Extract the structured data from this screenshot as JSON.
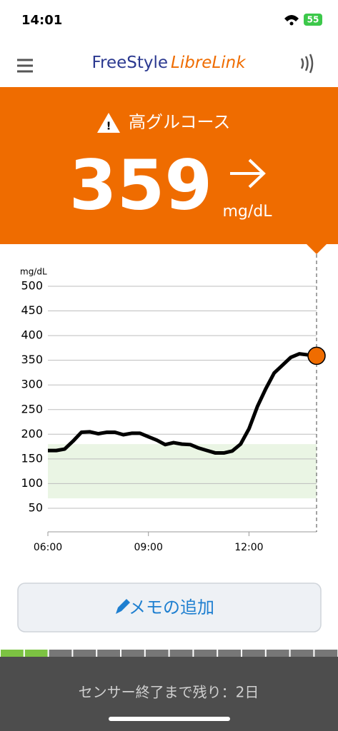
{
  "status_bar": {
    "time": "14:01",
    "battery": "55"
  },
  "header": {
    "brand_1": "FreeStyle",
    "brand_2": "LibreLink"
  },
  "alert": {
    "title": "高グルコース",
    "value": 359,
    "unit": "mg/dL"
  },
  "chart_data": {
    "type": "line",
    "y_label": "mg/dL",
    "x": [
      "06:00",
      "06:15",
      "06:30",
      "06:45",
      "07:00",
      "07:15",
      "07:30",
      "07:45",
      "08:00",
      "08:15",
      "08:30",
      "08:45",
      "09:00",
      "09:15",
      "09:30",
      "09:45",
      "10:00",
      "10:15",
      "10:30",
      "10:45",
      "11:00",
      "11:15",
      "11:30",
      "11:45",
      "12:00",
      "12:15",
      "12:30",
      "12:45",
      "13:00",
      "13:15",
      "13:30",
      "13:45",
      "14:01"
    ],
    "series": [
      {
        "color": "#000000",
        "values": [
          167,
          167,
          170,
          186,
          204,
          205,
          201,
          204,
          204,
          199,
          202,
          202,
          195,
          188,
          179,
          183,
          180,
          179,
          172,
          167,
          162,
          162,
          166,
          180,
          211,
          256,
          292,
          324,
          340,
          356,
          363,
          361,
          359
        ]
      }
    ],
    "xlim": [
      "06:00",
      "14:01"
    ],
    "xticks": [
      "06:00",
      "09:00",
      "12:00"
    ],
    "ylim": [
      0,
      500
    ],
    "yticks": [
      50,
      100,
      150,
      200,
      250,
      300,
      350,
      400,
      450,
      500
    ],
    "grid": true,
    "target_range": [
      70,
      180
    ],
    "target_color": "#eaf5e4",
    "marker_color": "#ef6c00"
  },
  "button": {
    "label": "メモの追加"
  },
  "footer": {
    "sensor_text": "センサー終了まで残り：2日"
  }
}
